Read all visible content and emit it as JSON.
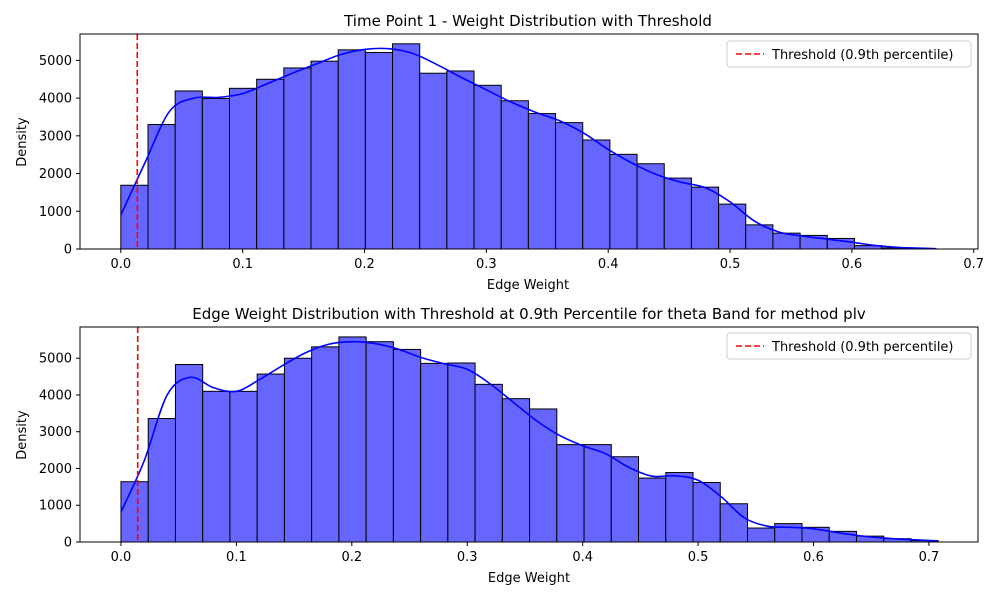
{
  "chart_data": [
    {
      "type": "bar",
      "title": "Time Point 1 - Weight Distribution with Threshold",
      "xlabel": "Edge Weight",
      "ylabel": "Density",
      "xlim": [
        -0.0335,
        0.7035
      ],
      "ylim": [
        0,
        5700
      ],
      "xticks": [
        0.0,
        0.1,
        0.2,
        0.3,
        0.4,
        0.5,
        0.6,
        0.7
      ],
      "xtick_labels": [
        "0.0",
        "0.1",
        "0.2",
        "0.3",
        "0.4",
        "0.5",
        "0.6",
        "0.7"
      ],
      "yticks": [
        0,
        1000,
        2000,
        3000,
        4000,
        5000
      ],
      "ytick_labels": [
        "0",
        "1000",
        "2000",
        "3000",
        "4000",
        "5000"
      ],
      "bin_edges": [
        0.0,
        0.0223,
        0.0446,
        0.0669,
        0.0892,
        0.1115,
        0.1338,
        0.1561,
        0.1784,
        0.2007,
        0.223,
        0.2453,
        0.2676,
        0.2899,
        0.3122,
        0.3345,
        0.3568,
        0.3791,
        0.4014,
        0.4237,
        0.446,
        0.4683,
        0.4906,
        0.5129,
        0.5352,
        0.5575,
        0.5798,
        0.6021,
        0.6244,
        0.6467,
        0.669
      ],
      "values": [
        1690,
        3300,
        4190,
        3990,
        4260,
        4500,
        4800,
        4980,
        5280,
        5210,
        5440,
        4660,
        4720,
        4340,
        3930,
        3590,
        3350,
        2890,
        2510,
        2260,
        1880,
        1640,
        1190,
        640,
        420,
        360,
        280,
        90,
        30,
        10
      ],
      "kde": {
        "x": [
          0.0,
          0.02,
          0.04,
          0.06,
          0.08,
          0.1,
          0.12,
          0.14,
          0.16,
          0.18,
          0.2,
          0.22,
          0.24,
          0.26,
          0.28,
          0.3,
          0.32,
          0.34,
          0.36,
          0.38,
          0.4,
          0.42,
          0.44,
          0.46,
          0.48,
          0.5,
          0.52,
          0.54,
          0.56,
          0.58,
          0.6,
          0.62,
          0.64,
          0.669
        ],
        "y": [
          900,
          2300,
          3650,
          4000,
          4020,
          4120,
          4380,
          4650,
          4900,
          5150,
          5290,
          5310,
          5180,
          4880,
          4540,
          4220,
          3900,
          3630,
          3400,
          3070,
          2640,
          2270,
          1970,
          1770,
          1620,
          1250,
          740,
          450,
          340,
          260,
          180,
          90,
          40,
          10
        ]
      },
      "threshold": 0.0135,
      "legend": {
        "label": "Threshold (0.9th percentile)",
        "placement": "upper right"
      },
      "colors": {
        "bar": "#6666ff",
        "kde": "#0000ff",
        "threshold": "#ff0000",
        "edge": "#000000"
      }
    },
    {
      "type": "bar",
      "title": "Edge Weight Distribution with Threshold at 0.9th Percentile for theta Band for method plv",
      "xlabel": "Edge Weight",
      "ylabel": "Density",
      "xlim": [
        -0.0355,
        0.7425
      ],
      "ylim": [
        0,
        5850
      ],
      "xticks": [
        0.0,
        0.1,
        0.2,
        0.3,
        0.4,
        0.5,
        0.6,
        0.7
      ],
      "xtick_labels": [
        "0.0",
        "0.1",
        "0.2",
        "0.3",
        "0.4",
        "0.5",
        "0.6",
        "0.7"
      ],
      "yticks": [
        0,
        1000,
        2000,
        3000,
        4000,
        5000
      ],
      "ytick_labels": [
        "0",
        "1000",
        "2000",
        "3000",
        "4000",
        "5000"
      ],
      "bin_edges": [
        0.0,
        0.0236,
        0.0472,
        0.0708,
        0.0944,
        0.118,
        0.1416,
        0.1652,
        0.1888,
        0.2124,
        0.236,
        0.2596,
        0.2832,
        0.3068,
        0.3304,
        0.354,
        0.3776,
        0.4012,
        0.4248,
        0.4484,
        0.472,
        0.4956,
        0.5192,
        0.5428,
        0.5664,
        0.59,
        0.6136,
        0.6372,
        0.6608,
        0.6844,
        0.708
      ],
      "values": [
        1640,
        3360,
        4830,
        4100,
        4100,
        4570,
        5000,
        5310,
        5580,
        5450,
        5240,
        4860,
        4870,
        4290,
        3900,
        3620,
        2650,
        2650,
        2320,
        1740,
        1890,
        1620,
        1040,
        380,
        500,
        400,
        290,
        160,
        90,
        40
      ],
      "kde": {
        "x": [
          0.0,
          0.02,
          0.04,
          0.06,
          0.08,
          0.1,
          0.12,
          0.14,
          0.16,
          0.18,
          0.2,
          0.22,
          0.24,
          0.26,
          0.28,
          0.3,
          0.32,
          0.34,
          0.36,
          0.38,
          0.4,
          0.42,
          0.44,
          0.46,
          0.48,
          0.5,
          0.52,
          0.54,
          0.56,
          0.58,
          0.6,
          0.62,
          0.64,
          0.66,
          0.68,
          0.708
        ],
        "y": [
          820,
          2200,
          4000,
          4480,
          4200,
          4100,
          4420,
          4800,
          5150,
          5380,
          5450,
          5400,
          5250,
          5020,
          4850,
          4700,
          4300,
          3800,
          3300,
          2900,
          2620,
          2400,
          2030,
          1790,
          1800,
          1680,
          1230,
          660,
          430,
          400,
          360,
          260,
          170,
          110,
          70,
          30
        ]
      },
      "threshold": 0.0145,
      "legend": {
        "label": "Threshold (0.9th percentile)",
        "placement": "upper right"
      },
      "colors": {
        "bar": "#6666ff",
        "kde": "#0000ff",
        "threshold": "#ff0000",
        "edge": "#000000"
      }
    }
  ]
}
